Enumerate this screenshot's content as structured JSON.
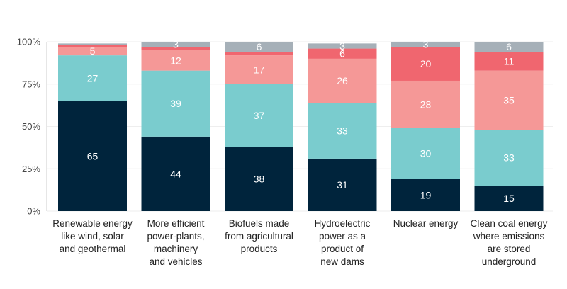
{
  "chart_data": {
    "type": "bar",
    "stacked": true,
    "percent": true,
    "title": "",
    "xlabel": "",
    "ylabel": "",
    "ylim": [
      0,
      100
    ],
    "yticks": [
      "0%",
      "25%",
      "50%",
      "75%",
      "100%"
    ],
    "ytick_values": [
      0,
      25,
      50,
      75,
      100
    ],
    "categories": [
      [
        "Renewable energy",
        "like wind, solar",
        "and geothermal"
      ],
      [
        "More efficient",
        "power-plants,",
        "machinery",
        "and vehicles"
      ],
      [
        "Biofuels made",
        "from agricultural",
        "products"
      ],
      [
        "Hydroelectric",
        "power as a",
        "product of",
        "new dams"
      ],
      [
        "Nuclear energy"
      ],
      [
        "Clean coal energy",
        "where emissions",
        "are stored",
        "underground"
      ]
    ],
    "series": [
      {
        "name": "series-1",
        "color": "#00243c",
        "label_color": "#ffffff",
        "values": [
          65,
          44,
          38,
          31,
          19,
          15
        ]
      },
      {
        "name": "series-2",
        "color": "#7accce",
        "label_color": "#ffffff",
        "values": [
          27,
          39,
          37,
          33,
          30,
          33
        ]
      },
      {
        "name": "series-3",
        "color": "#f59897",
        "label_color": "#ffffff",
        "values": [
          5,
          12,
          17,
          26,
          28,
          35
        ]
      },
      {
        "name": "series-4",
        "color": "#f0666f",
        "label_color": "#ffffff",
        "values": [
          1,
          2,
          2,
          6,
          20,
          11
        ]
      },
      {
        "name": "series-5",
        "color": "#a6b0b8",
        "label_color": "#ffffff",
        "values": [
          1,
          3,
          6,
          3,
          3,
          6
        ]
      }
    ],
    "data_labels": [
      [
        "65",
        "27",
        "5",
        null,
        null
      ],
      [
        "44",
        "39",
        "12",
        null,
        "3"
      ],
      [
        "38",
        "37",
        "17",
        null,
        "6"
      ],
      [
        "31",
        "33",
        "26",
        "6",
        "3"
      ],
      [
        "19",
        "30",
        "28",
        "20",
        "3"
      ],
      [
        "15",
        "33",
        "35",
        "11",
        "6"
      ]
    ]
  }
}
